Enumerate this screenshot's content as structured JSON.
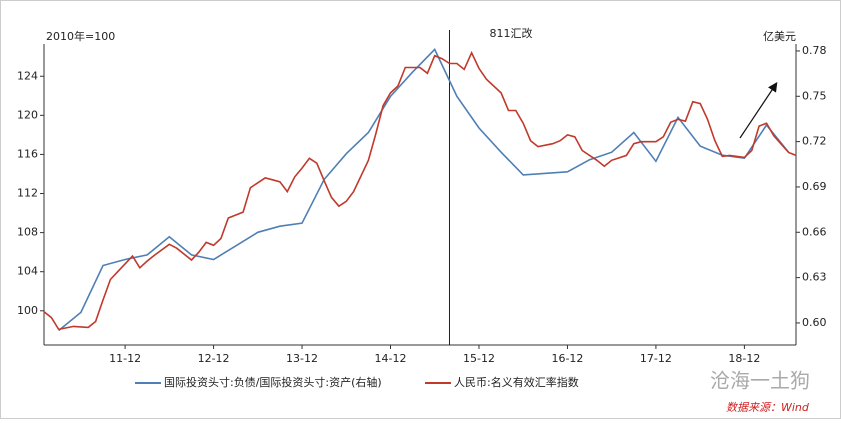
{
  "chart_data": {
    "type": "line",
    "ylabel": "2010年=100",
    "y2label": "亿美元",
    "xlim": [
      "11-01",
      "19-07"
    ],
    "xticks": [
      "11-12",
      "12-12",
      "13-12",
      "14-12",
      "15-12",
      "16-12",
      "17-12",
      "18-12"
    ],
    "ylim": [
      96.5,
      127.3
    ],
    "yticks": [
      100,
      104,
      108,
      112,
      116,
      120,
      124
    ],
    "y2lim": [
      0.5854,
      0.7846
    ],
    "y2ticks": [
      {
        "value": 0.6,
        "label": "0.60"
      },
      0.63,
      0.66,
      0.69,
      0.72,
      0.75,
      0.78
    ],
    "event_line": {
      "x": "15-08",
      "label": "811汇改"
    },
    "series": [
      {
        "name": "国际投资头寸:负债/国际投资头寸:资产(右轴)",
        "color": "#4f7fb4",
        "axis": "y2",
        "x": [
          "11-03",
          "11-06",
          "11-09",
          "11-12",
          "12-03",
          "12-06",
          "12-09",
          "12-12",
          "13-03",
          "13-06",
          "13-09",
          "13-12",
          "14-03",
          "14-06",
          "14-09",
          "14-12",
          "15-03",
          "15-06",
          "15-09",
          "15-12",
          "16-03",
          "16-06",
          "16-12",
          "17-03",
          "17-06",
          "17-09",
          "17-12",
          "18-03",
          "18-06",
          "18-09",
          "18-12",
          "19-03",
          "19-06"
        ],
        "values": [
          0.595,
          0.607,
          0.638,
          0.642,
          0.645,
          0.657,
          0.645,
          0.642,
          0.651,
          0.66,
          0.664,
          0.666,
          0.695,
          0.712,
          0.726,
          0.75,
          0.766,
          0.781,
          0.75,
          0.729,
          0.713,
          0.698,
          0.7,
          0.708,
          0.713,
          0.726,
          0.707,
          0.736,
          0.717,
          0.711,
          0.709,
          0.731,
          0.713
        ]
      },
      {
        "name": "人民币:名义有效汇率指数",
        "color": "#c0392b",
        "axis": "y",
        "x": [
          "11-01",
          "11-02",
          "11-03",
          "11-05",
          "11-07",
          "11-08",
          "11-09",
          "11-10",
          "11-11",
          "12-01",
          "12-02",
          "12-03",
          "12-04",
          "12-06",
          "12-07",
          "12-09",
          "12-10",
          "12-11",
          "12-12",
          "13-01",
          "13-02",
          "13-04",
          "13-05",
          "13-06",
          "13-07",
          "13-08",
          "13-09",
          "13-10",
          "13-11",
          "13-12",
          "14-01",
          "14-02",
          "14-03",
          "14-04",
          "14-05",
          "14-06",
          "14-07",
          "14-09",
          "14-10",
          "14-11",
          "14-12",
          "15-01",
          "15-02",
          "15-04",
          "15-05",
          "15-06",
          "15-07",
          "15-08",
          "15-09",
          "15-10",
          "15-11",
          "15-12",
          "16-01",
          "16-03",
          "16-04",
          "16-05",
          "16-06",
          "16-07",
          "16-08",
          "16-10",
          "16-11",
          "16-12",
          "17-01",
          "17-02",
          "17-04",
          "17-05",
          "17-06",
          "17-08",
          "17-09",
          "17-10",
          "17-12",
          "18-01",
          "18-02",
          "18-03",
          "18-04",
          "18-05",
          "18-06",
          "18-07",
          "18-08",
          "18-09",
          "18-10",
          "18-12",
          "19-01",
          "19-02",
          "19-03",
          "19-04",
          "19-06",
          "19-07"
        ],
        "values": [
          99.9,
          99.3,
          98.1,
          98.4,
          98.3,
          98.9,
          101.1,
          103.2,
          104.0,
          105.6,
          104.4,
          105.1,
          105.7,
          106.8,
          106.4,
          105.2,
          106.0,
          107.0,
          106.7,
          107.4,
          109.5,
          110.1,
          112.6,
          113.1,
          113.6,
          113.4,
          113.2,
          112.2,
          113.7,
          114.6,
          115.6,
          115.1,
          113.3,
          111.6,
          110.7,
          111.2,
          112.2,
          115.4,
          118.1,
          121.0,
          122.3,
          123.0,
          124.9,
          124.9,
          124.3,
          126.1,
          125.8,
          125.3,
          125.3,
          124.7,
          126.4,
          124.8,
          123.7,
          122.3,
          120.5,
          120.5,
          119.2,
          117.4,
          116.8,
          117.1,
          117.4,
          118.0,
          117.8,
          116.4,
          115.4,
          114.8,
          115.4,
          115.9,
          117.1,
          117.3,
          117.3,
          117.8,
          119.3,
          119.6,
          119.4,
          121.4,
          121.2,
          119.6,
          117.4,
          115.8,
          115.9,
          115.7,
          116.4,
          118.9,
          119.2,
          117.9,
          116.2,
          115.9
        ]
      }
    ],
    "watermark": "沧海一土狗",
    "source": "数据来源：Wind"
  }
}
